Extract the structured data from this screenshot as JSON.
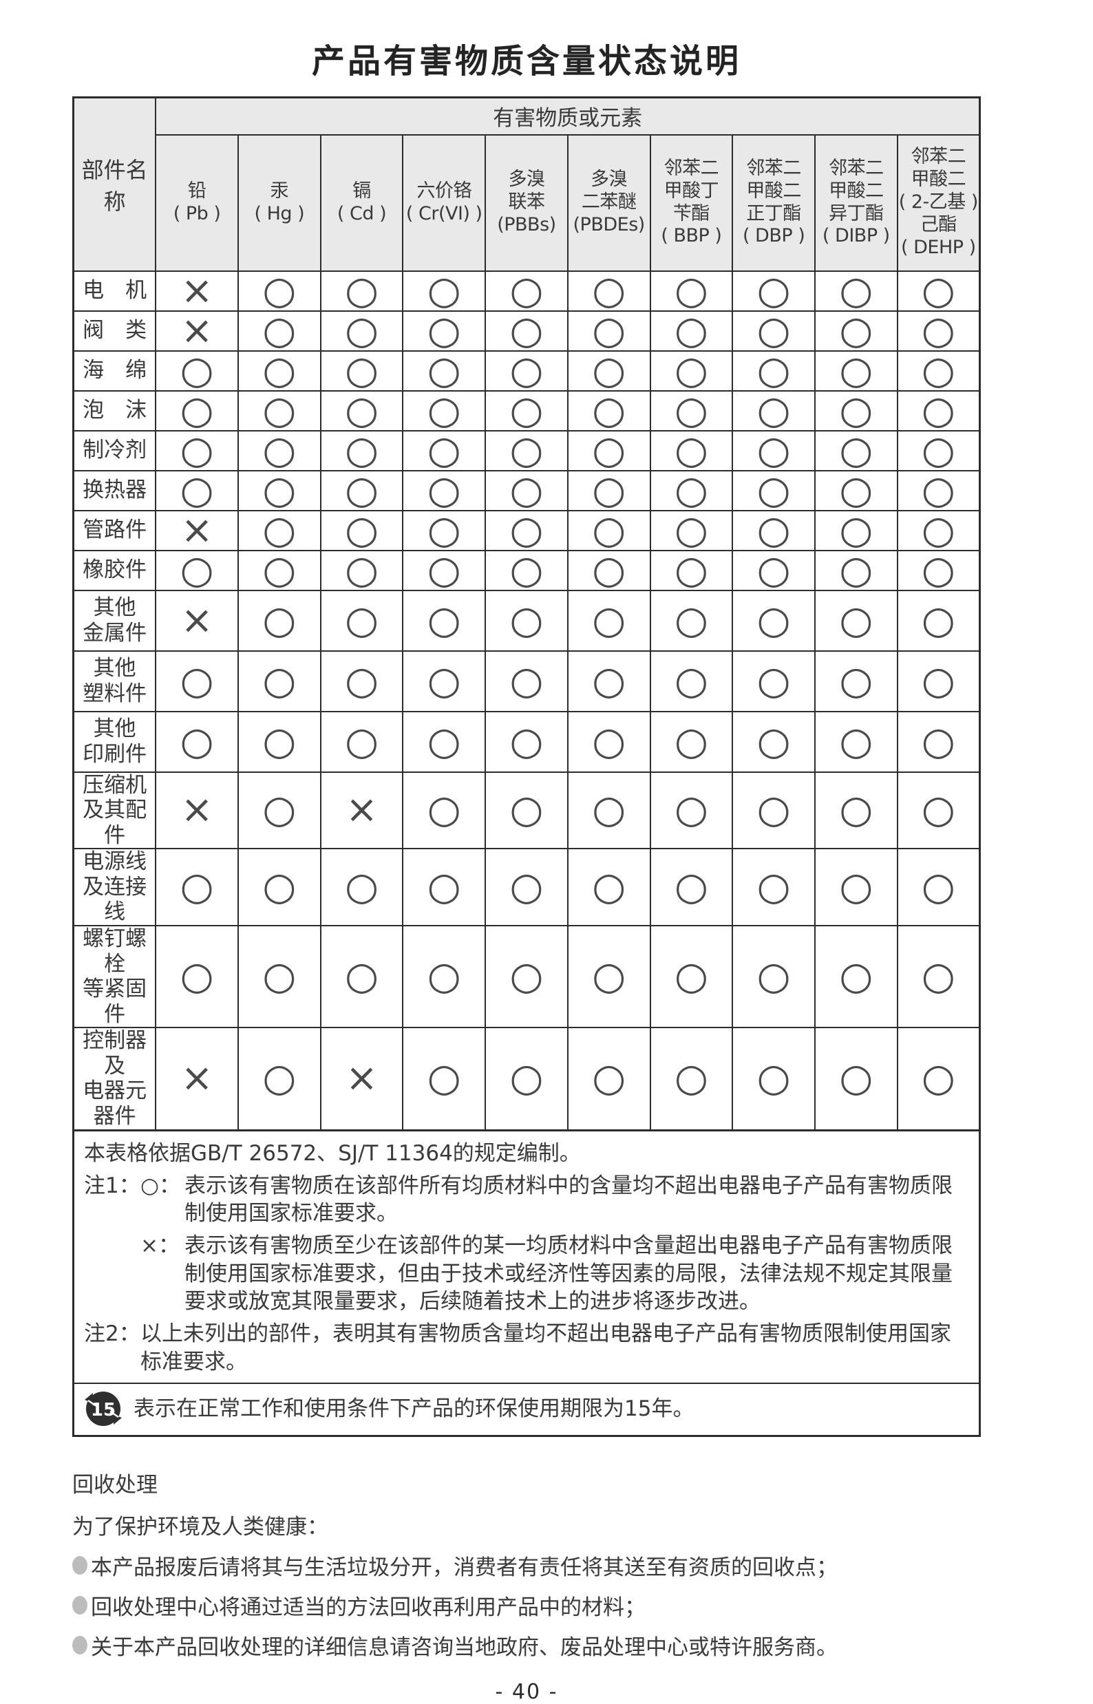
{
  "page": {
    "title": "产品有害物质含量状态说明",
    "page_number": "- 40 -"
  },
  "table": {
    "corner_header": "部件名称",
    "group_header": "有害物质或元素",
    "symbols": {
      "o": "○",
      "x": "×"
    },
    "columns": [
      {
        "name": "lead",
        "lines": [
          "铅",
          "( Pb )"
        ]
      },
      {
        "name": "mercury",
        "lines": [
          "汞",
          "( Hg )"
        ]
      },
      {
        "name": "cadmium",
        "lines": [
          "镉",
          "( Cd )"
        ]
      },
      {
        "name": "hexavalent-chromium",
        "lines": [
          "六价铬",
          "( Cr(VI) )"
        ]
      },
      {
        "name": "pbbs",
        "lines": [
          "多溴",
          "联苯",
          "(PBBs)"
        ]
      },
      {
        "name": "pbdes",
        "lines": [
          "多溴",
          "二苯醚",
          "(PBDEs)"
        ]
      },
      {
        "name": "bbp",
        "lines": [
          "邻苯二",
          "甲酸丁",
          "苄酯",
          "( BBP )"
        ]
      },
      {
        "name": "dbp",
        "lines": [
          "邻苯二",
          "甲酸二",
          "正丁酯",
          "( DBP )"
        ]
      },
      {
        "name": "dibp",
        "lines": [
          "邻苯二",
          "甲酸二",
          "异丁酯",
          "( DIBP )"
        ]
      },
      {
        "name": "dehp",
        "lines": [
          "邻苯二",
          "甲酸二",
          "( 2-乙基 )",
          "己酯",
          "( DEHP )"
        ]
      }
    ],
    "rows": [
      {
        "name_lines": [
          "电　机"
        ],
        "values": [
          "x",
          "o",
          "o",
          "o",
          "o",
          "o",
          "o",
          "o",
          "o",
          "o"
        ]
      },
      {
        "name_lines": [
          "阀　类"
        ],
        "values": [
          "x",
          "o",
          "o",
          "o",
          "o",
          "o",
          "o",
          "o",
          "o",
          "o"
        ]
      },
      {
        "name_lines": [
          "海　绵"
        ],
        "values": [
          "o",
          "o",
          "o",
          "o",
          "o",
          "o",
          "o",
          "o",
          "o",
          "o"
        ]
      },
      {
        "name_lines": [
          "泡　沫"
        ],
        "values": [
          "o",
          "o",
          "o",
          "o",
          "o",
          "o",
          "o",
          "o",
          "o",
          "o"
        ]
      },
      {
        "name_lines": [
          "制冷剂"
        ],
        "values": [
          "o",
          "o",
          "o",
          "o",
          "o",
          "o",
          "o",
          "o",
          "o",
          "o"
        ]
      },
      {
        "name_lines": [
          "换热器"
        ],
        "values": [
          "o",
          "o",
          "o",
          "o",
          "o",
          "o",
          "o",
          "o",
          "o",
          "o"
        ]
      },
      {
        "name_lines": [
          "管路件"
        ],
        "values": [
          "x",
          "o",
          "o",
          "o",
          "o",
          "o",
          "o",
          "o",
          "o",
          "o"
        ]
      },
      {
        "name_lines": [
          "橡胶件"
        ],
        "values": [
          "o",
          "o",
          "o",
          "o",
          "o",
          "o",
          "o",
          "o",
          "o",
          "o"
        ]
      },
      {
        "name_lines": [
          "其他",
          "金属件"
        ],
        "values": [
          "x",
          "o",
          "o",
          "o",
          "o",
          "o",
          "o",
          "o",
          "o",
          "o"
        ]
      },
      {
        "name_lines": [
          "其他",
          "塑料件"
        ],
        "values": [
          "o",
          "o",
          "o",
          "o",
          "o",
          "o",
          "o",
          "o",
          "o",
          "o"
        ]
      },
      {
        "name_lines": [
          "其他",
          "印刷件"
        ],
        "values": [
          "o",
          "o",
          "o",
          "o",
          "o",
          "o",
          "o",
          "o",
          "o",
          "o"
        ]
      },
      {
        "name_lines": [
          "压缩机",
          "及其配件"
        ],
        "values": [
          "x",
          "o",
          "x",
          "o",
          "o",
          "o",
          "o",
          "o",
          "o",
          "o"
        ]
      },
      {
        "name_lines": [
          "电源线",
          "及连接线"
        ],
        "values": [
          "o",
          "o",
          "o",
          "o",
          "o",
          "o",
          "o",
          "o",
          "o",
          "o"
        ]
      },
      {
        "name_lines": [
          "螺钉螺栓",
          "等紧固件"
        ],
        "values": [
          "o",
          "o",
          "o",
          "o",
          "o",
          "o",
          "o",
          "o",
          "o",
          "o"
        ]
      },
      {
        "name_lines": [
          "控制器及",
          "电器元器件"
        ],
        "values": [
          "x",
          "o",
          "x",
          "o",
          "o",
          "o",
          "o",
          "o",
          "o",
          "o"
        ]
      }
    ]
  },
  "notes": {
    "basis": "本表格依据GB/T 26572、SJ/T 11364的规定编制。",
    "note1_label": "注1：",
    "circle_symbol": "○：",
    "circle_meaning": "表示该有害物质在该部件所有均质材料中的含量均不超出电器电子产品有害物质限制使用国家标准要求。",
    "cross_symbol": "×：",
    "cross_meaning": "表示该有害物质至少在该部件的某一均质材料中含量超出电器电子产品有害物质限制使用国家标准要求，但由于技术或经济性等因素的局限，法律法规不规定其限量要求或放宽其限量要求，后续随着技术上的进步将逐步改进。",
    "note2_label": "注2：",
    "note2_text": "以上未列出的部件，表明其有害物质含量均不超出电器电子产品有害物质限制使用国家标准要求。",
    "epup_number": "15",
    "epup_text": "表示在正常工作和使用条件下产品的环保使用期限为15年。"
  },
  "recycle": {
    "heading": "回收处理",
    "intro": "为了保护环境及人类健康：",
    "bullets": [
      "本产品报废后请将其与生活垃圾分开，消费者有责任将其送至有资质的回收点；",
      "回收处理中心将通过适当的方法回收再利用产品中的材料；",
      "关于本产品回收处理的详细信息请咨询当地政府、废品处理中心或特许服务商。"
    ]
  }
}
